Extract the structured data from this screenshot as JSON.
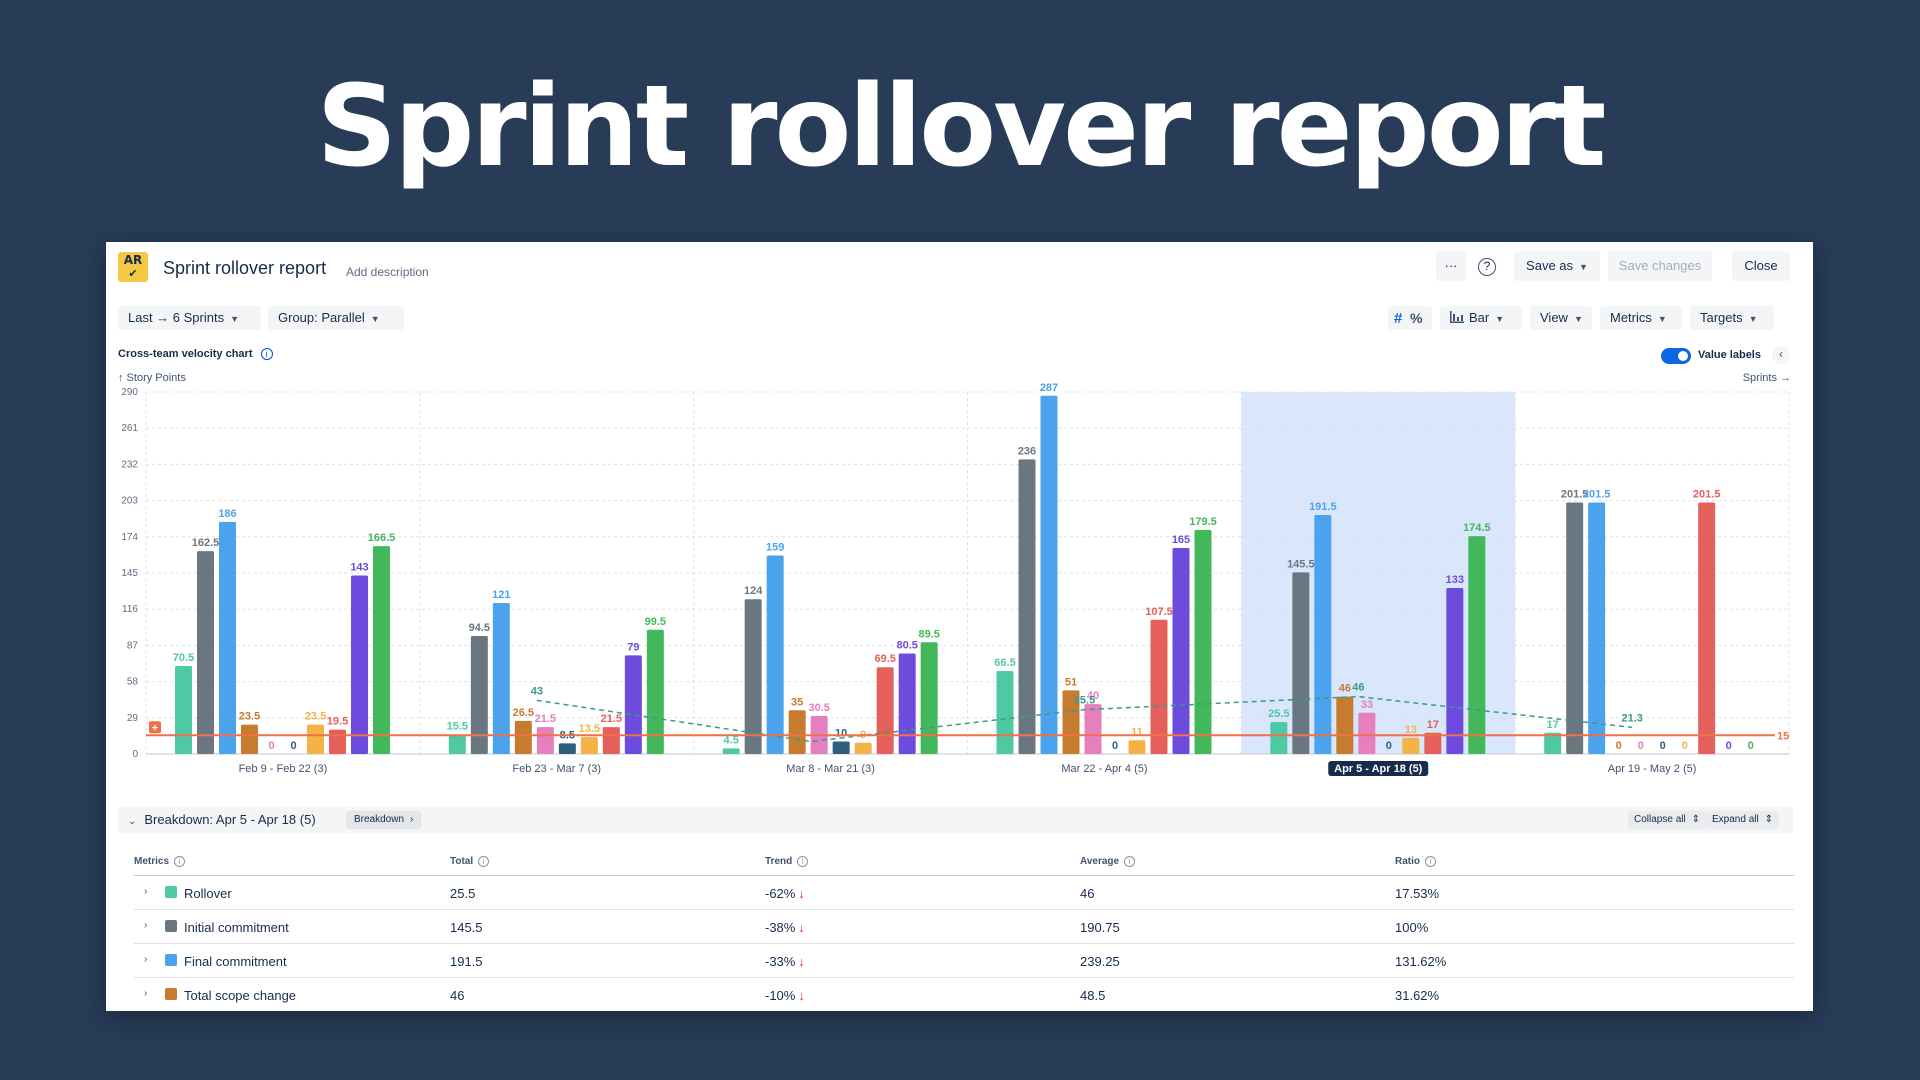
{
  "hero_title": "Sprint rollover report",
  "header": {
    "logo_text": "AR",
    "title": "Sprint rollover report",
    "add_description": "Add description",
    "more_label": "···",
    "help_label": "?",
    "save_as": "Save as",
    "save_changes": "Save changes",
    "close": "Close"
  },
  "toolbar": {
    "range": "Last → 6 Sprints",
    "group": "Group: Parallel",
    "hash_icon": "#",
    "percent_icon": "%",
    "chart_type": "Bar",
    "view": "View",
    "metrics": "Metrics",
    "targets": "Targets"
  },
  "chart_panel": {
    "title": "Cross-team velocity chart",
    "info": "i",
    "y_unit": "↑ Story Points",
    "x_unit": "Sprints →",
    "value_labels": "Value labels",
    "collapse": "‹"
  },
  "colors": {
    "teal": "#4fc8a4",
    "gray": "#6b7780",
    "blue": "#4aa3ec",
    "brown": "#c77b2e",
    "pink": "#e57fbd",
    "navy": "#2e5f7e",
    "amber": "#f4b247",
    "red": "#e5605a",
    "purple": "#6d4bdd",
    "green": "#43b85a",
    "target_line": "#f07048",
    "trend_line": "#3a9a8c",
    "highlight": "#cfe0fb"
  },
  "chart_data": {
    "type": "bar",
    "ylabel": "Story Points",
    "xlabel": "Sprints",
    "ylim": [
      0,
      290
    ],
    "yticks": [
      0,
      29,
      58,
      87,
      116,
      145,
      174,
      203,
      232,
      261,
      290
    ],
    "selected_group": 4,
    "target": 15,
    "target_label": "15",
    "groups": [
      {
        "label": "Feb 9 - Feb 22 (3)",
        "bars": [
          {
            "color": "teal",
            "value": 70.5,
            "label": "70.5"
          },
          {
            "color": "gray",
            "value": 162.5,
            "label": "162.5"
          },
          {
            "color": "blue",
            "value": 186,
            "label": "186"
          },
          {
            "color": "brown",
            "value": 23.5,
            "label": "23.5"
          },
          {
            "color": "pink",
            "value": 0,
            "label": "0"
          },
          {
            "color": "navy",
            "value": 0,
            "label": "0"
          },
          {
            "color": "amber",
            "value": 23.5,
            "label": "23.5"
          },
          {
            "color": "red",
            "value": 19.5,
            "label": "19.5"
          },
          {
            "color": "purple",
            "value": 143,
            "label": "143"
          },
          {
            "color": "green",
            "value": 166.5,
            "label": "166.5"
          }
        ]
      },
      {
        "label": "Feb 23 - Mar 7 (3)",
        "bars": [
          {
            "color": "teal",
            "value": 15.5,
            "label": "15.5"
          },
          {
            "color": "gray",
            "value": 94.5,
            "label": "94.5"
          },
          {
            "color": "blue",
            "value": 121,
            "label": "121"
          },
          {
            "color": "brown",
            "value": 26.5,
            "label": "26.5"
          },
          {
            "color": "pink",
            "value": 21.5,
            "label": "21.5"
          },
          {
            "color": "navy",
            "value": 8.5,
            "label": "8.5"
          },
          {
            "color": "amber",
            "value": 13.5,
            "label": "13.5"
          },
          {
            "color": "red",
            "value": 21.5,
            "label": "21.5"
          },
          {
            "color": "purple",
            "value": 79,
            "label": "79"
          },
          {
            "color": "green",
            "value": 99.5,
            "label": "99.5"
          }
        ]
      },
      {
        "label": "Mar 8 - Mar 21 (3)",
        "bars": [
          {
            "color": "teal",
            "value": 4.5,
            "label": "4.5"
          },
          {
            "color": "gray",
            "value": 124,
            "label": "124"
          },
          {
            "color": "blue",
            "value": 159,
            "label": "159"
          },
          {
            "color": "brown",
            "value": 35,
            "label": "35"
          },
          {
            "color": "pink",
            "value": 30.5,
            "label": "30.5"
          },
          {
            "color": "navy",
            "value": 10,
            "label": "10"
          },
          {
            "color": "amber",
            "value": 9,
            "label": "9"
          },
          {
            "color": "red",
            "value": 69.5,
            "label": "69.5"
          },
          {
            "color": "purple",
            "value": 80.5,
            "label": "80.5"
          },
          {
            "color": "green",
            "value": 89.5,
            "label": "89.5"
          }
        ]
      },
      {
        "label": "Mar 22 - Apr 4 (5)",
        "bars": [
          {
            "color": "teal",
            "value": 66.5,
            "label": "66.5"
          },
          {
            "color": "gray",
            "value": 236,
            "label": "236"
          },
          {
            "color": "blue",
            "value": 287,
            "label": "287"
          },
          {
            "color": "brown",
            "value": 51,
            "label": "51"
          },
          {
            "color": "pink",
            "value": 40,
            "label": "40"
          },
          {
            "color": "navy",
            "value": 0,
            "label": "0"
          },
          {
            "color": "amber",
            "value": 11,
            "label": "11"
          },
          {
            "color": "red",
            "value": 107.5,
            "label": "107.5"
          },
          {
            "color": "purple",
            "value": 165,
            "label": "165"
          },
          {
            "color": "green",
            "value": 179.5,
            "label": "179.5"
          }
        ]
      },
      {
        "label": "Apr 5 - Apr 18 (5)",
        "bars": [
          {
            "color": "teal",
            "value": 25.5,
            "label": "25.5"
          },
          {
            "color": "gray",
            "value": 145.5,
            "label": "145.5"
          },
          {
            "color": "blue",
            "value": 191.5,
            "label": "191.5"
          },
          {
            "color": "brown",
            "value": 46,
            "label": "46"
          },
          {
            "color": "pink",
            "value": 33,
            "label": "33"
          },
          {
            "color": "navy",
            "value": 0,
            "label": "0"
          },
          {
            "color": "amber",
            "value": 13,
            "label": "13"
          },
          {
            "color": "red",
            "value": 17,
            "label": "17"
          },
          {
            "color": "purple",
            "value": 133,
            "label": "133"
          },
          {
            "color": "green",
            "value": 174.5,
            "label": "174.5"
          }
        ]
      },
      {
        "label": "Apr 19 - May 2 (5)",
        "bars": [
          {
            "color": "teal",
            "value": 17,
            "label": "17"
          },
          {
            "color": "gray",
            "value": 201.5,
            "label": "201.5"
          },
          {
            "color": "blue",
            "value": 201.5,
            "label": "201.5"
          },
          {
            "color": "brown",
            "value": 0,
            "label": "0"
          },
          {
            "color": "pink",
            "value": 0,
            "label": "0"
          },
          {
            "color": "navy",
            "value": 0,
            "label": "0"
          },
          {
            "color": "amber",
            "value": 0,
            "label": "0"
          },
          {
            "color": "red",
            "value": 201.5,
            "label": "201.5"
          },
          {
            "color": "purple",
            "value": 0,
            "label": "0"
          },
          {
            "color": "green",
            "value": 0,
            "label": "0"
          }
        ]
      }
    ],
    "trend_points": [
      {
        "group": 1,
        "value": 43,
        "label": "43"
      },
      {
        "group": 2,
        "value": 10,
        "label": ""
      },
      {
        "group": 3,
        "value": 35.5,
        "label": "35.5"
      },
      {
        "group": 4,
        "value": 46,
        "label": "46"
      },
      {
        "group": 5,
        "value": 21.3,
        "label": "21.3"
      }
    ]
  },
  "breakdown": {
    "title": "Breakdown: Apr 5 - Apr 18 (5)",
    "pill": "Breakdown",
    "collapse_all": "Collapse all",
    "expand_all": "Expand all",
    "columns": [
      "Metrics",
      "Total",
      "Trend",
      "Average",
      "Ratio"
    ],
    "rows": [
      {
        "name": "Rollover",
        "color": "#4fc8a4",
        "total": "25.5",
        "trend": "-62%",
        "average": "46",
        "ratio": "17.53%"
      },
      {
        "name": "Initial commitment",
        "color": "#6b7780",
        "total": "145.5",
        "trend": "-38%",
        "average": "190.75",
        "ratio": "100%"
      },
      {
        "name": "Final commitment",
        "color": "#4aa3ec",
        "total": "191.5",
        "trend": "-33%",
        "average": "239.25",
        "ratio": "131.62%"
      },
      {
        "name": "Total scope change",
        "color": "#c77b2e",
        "total": "46",
        "trend": "-10%",
        "average": "48.5",
        "ratio": "31.62%"
      }
    ]
  }
}
